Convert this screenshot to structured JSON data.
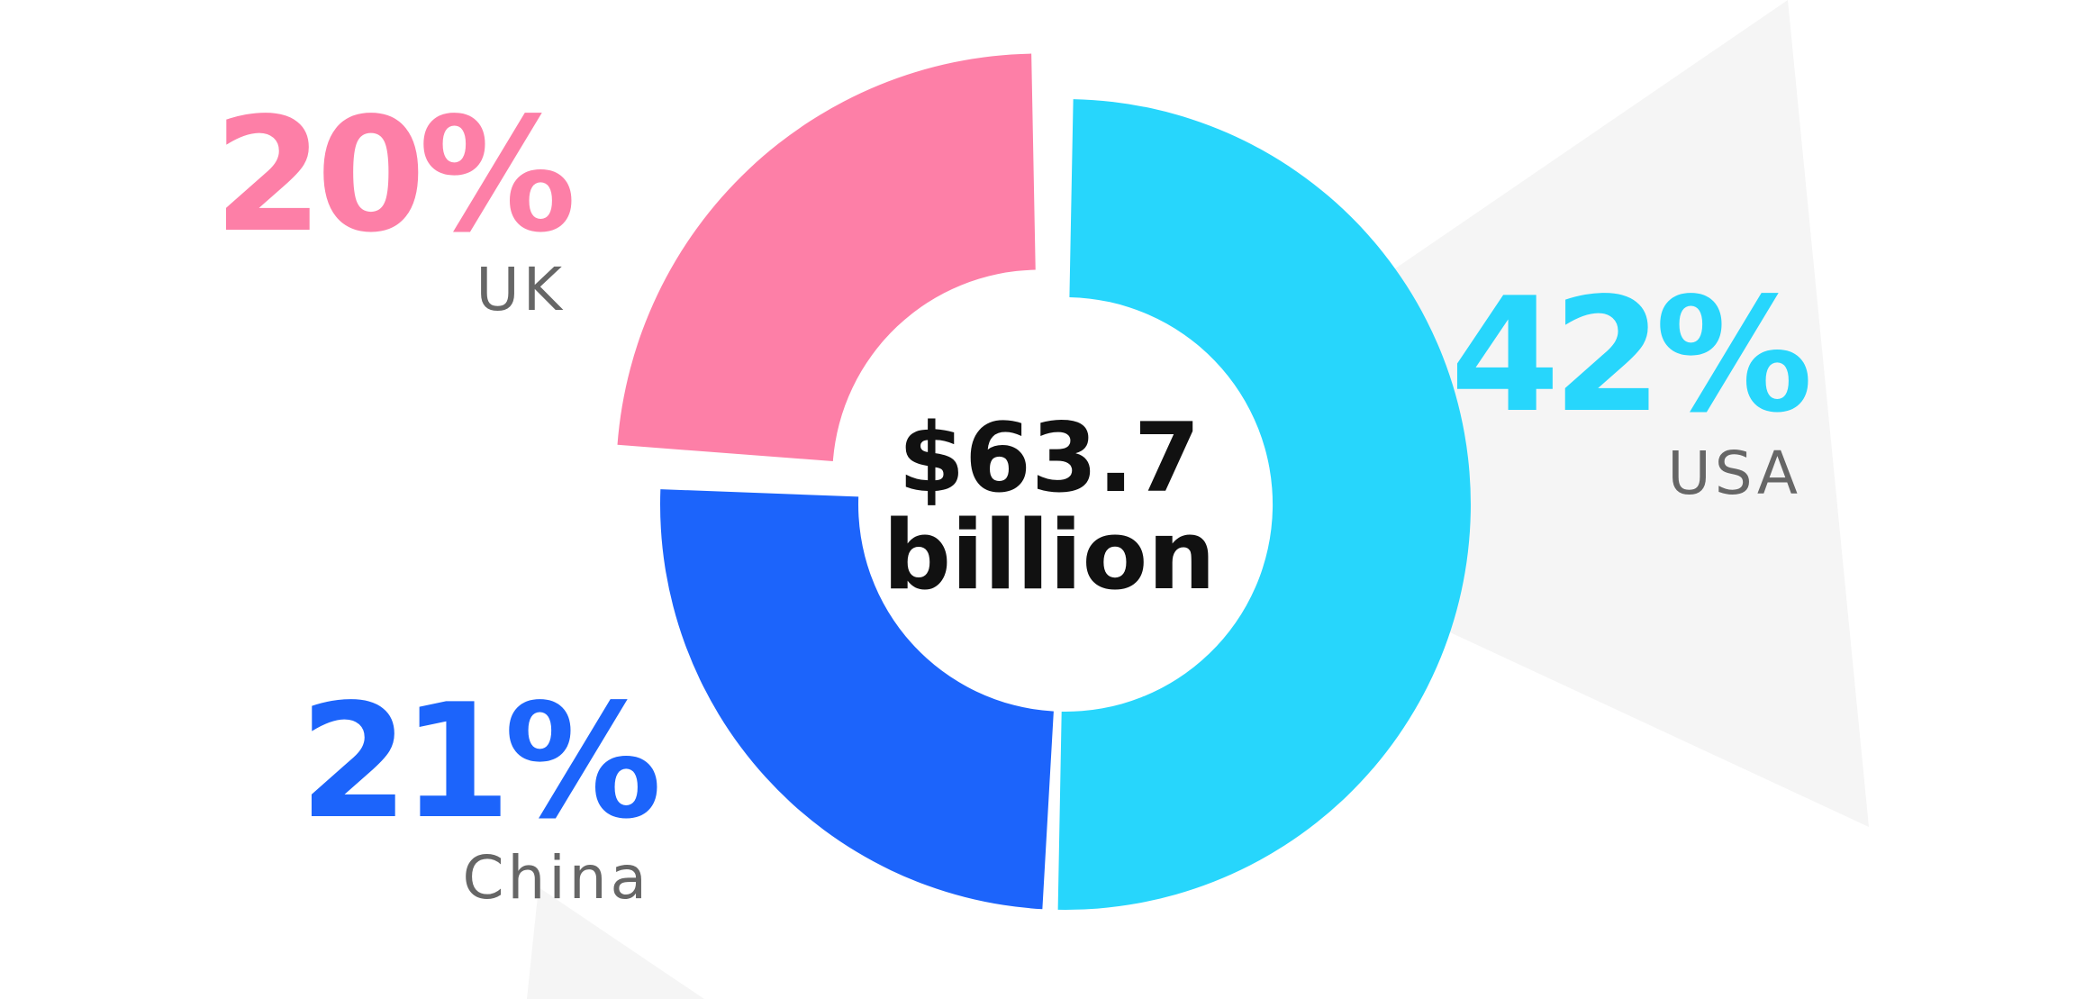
{
  "chart_data": {
    "type": "pie",
    "center_label": [
      "$63.7",
      "billion"
    ],
    "slices": [
      {
        "label": "USA",
        "value_label": "42%",
        "value": 42,
        "color": "#27d6fc"
      },
      {
        "label": "China",
        "value_label": "21%",
        "value": 21,
        "color": "#1c64fb"
      },
      {
        "label": "UK",
        "value_label": "20%",
        "value": 20,
        "color": "#fd7fa7"
      }
    ],
    "colors": {
      "background_shapes": "#f5f5f5",
      "category_text": "#666666",
      "center_text": "#111111"
    }
  }
}
